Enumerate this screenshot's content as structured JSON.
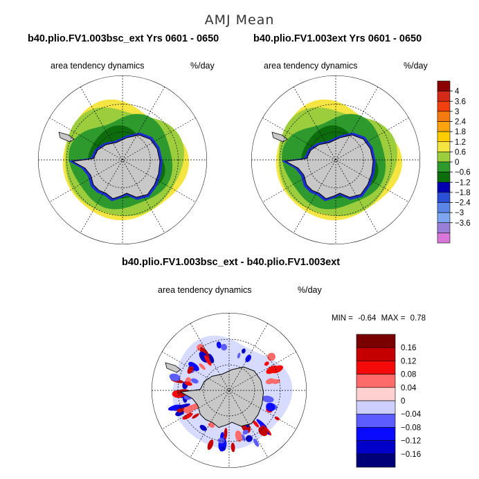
{
  "figure_title": "AMJ Mean",
  "panels": [
    {
      "title": "b40.plio.FV1.003bsc_ext  Yrs 0601 - 0650",
      "variable": "area tendency dynamics",
      "units": "%/day"
    },
    {
      "title": "b40.plio.FV1.003ext  Yrs 0601 - 0650",
      "variable": "area tendency dynamics",
      "units": "%/day"
    },
    {
      "title": "b40.plio.FV1.003bsc_ext - b40.plio.FV1.003ext",
      "variable": "area tendency dynamics",
      "units": "%/day"
    }
  ],
  "stats": {
    "min_label": "MIN =",
    "min_value": "-0.64",
    "max_label": "MAX =",
    "max_value": "0.78"
  },
  "chart_data": [
    {
      "type": "polar-stereographic-map",
      "title": "b40.plio.FV1.003bsc_ext  Yrs 0601 - 0650",
      "field": "area tendency dynamics (%/day)",
      "dominant_range": [
        -1.2,
        1.2
      ],
      "description_levels": [
        "green interior -0.6 to 0",
        "light green 0 to 0.6",
        "yellow ice edge 0.6 to 1.8",
        "blue coastal -1.8 to -1.2"
      ]
    },
    {
      "type": "polar-stereographic-map",
      "title": "b40.plio.FV1.003ext  Yrs 0601 - 0650",
      "field": "area tendency dynamics (%/day)",
      "dominant_range": [
        -1.2,
        1.2
      ]
    },
    {
      "type": "polar-stereographic-map",
      "title": "b40.plio.FV1.003bsc_ext - b40.plio.FV1.003ext",
      "field": "difference (%/day)",
      "min": -0.64,
      "max": 0.78
    }
  ],
  "colorbar_top": {
    "labels": [
      "4",
      "3.6",
      "3",
      "2.4",
      "1.8",
      "1.2",
      "0.6",
      "0",
      "−0.6",
      "−1.2",
      "−1.8",
      "−2.4",
      "−3",
      "−3.6"
    ],
    "colors": [
      "#8b0000",
      "#d42a1a",
      "#f04010",
      "#f57a10",
      "#fba310",
      "#ffcc00",
      "#f4e542",
      "#9ccd3c",
      "#2e9a2e",
      "#0d6d0d",
      "#0000b0",
      "#2b4fd6",
      "#5a86e8",
      "#7ea6f0",
      "#9a7fd8",
      "#d877d8"
    ]
  },
  "colorbar_bottom": {
    "labels": [
      "0.16",
      "0.12",
      "0.08",
      "0.04",
      "0",
      "−0.04",
      "−0.08",
      "−0.12",
      "−0.16"
    ],
    "colors": [
      "#7a0000",
      "#c40000",
      "#f50a0a",
      "#ff6a6a",
      "#ffd0d0",
      "#cccfff",
      "#5c5cff",
      "#0a0aff",
      "#0000c8",
      "#000078"
    ]
  }
}
